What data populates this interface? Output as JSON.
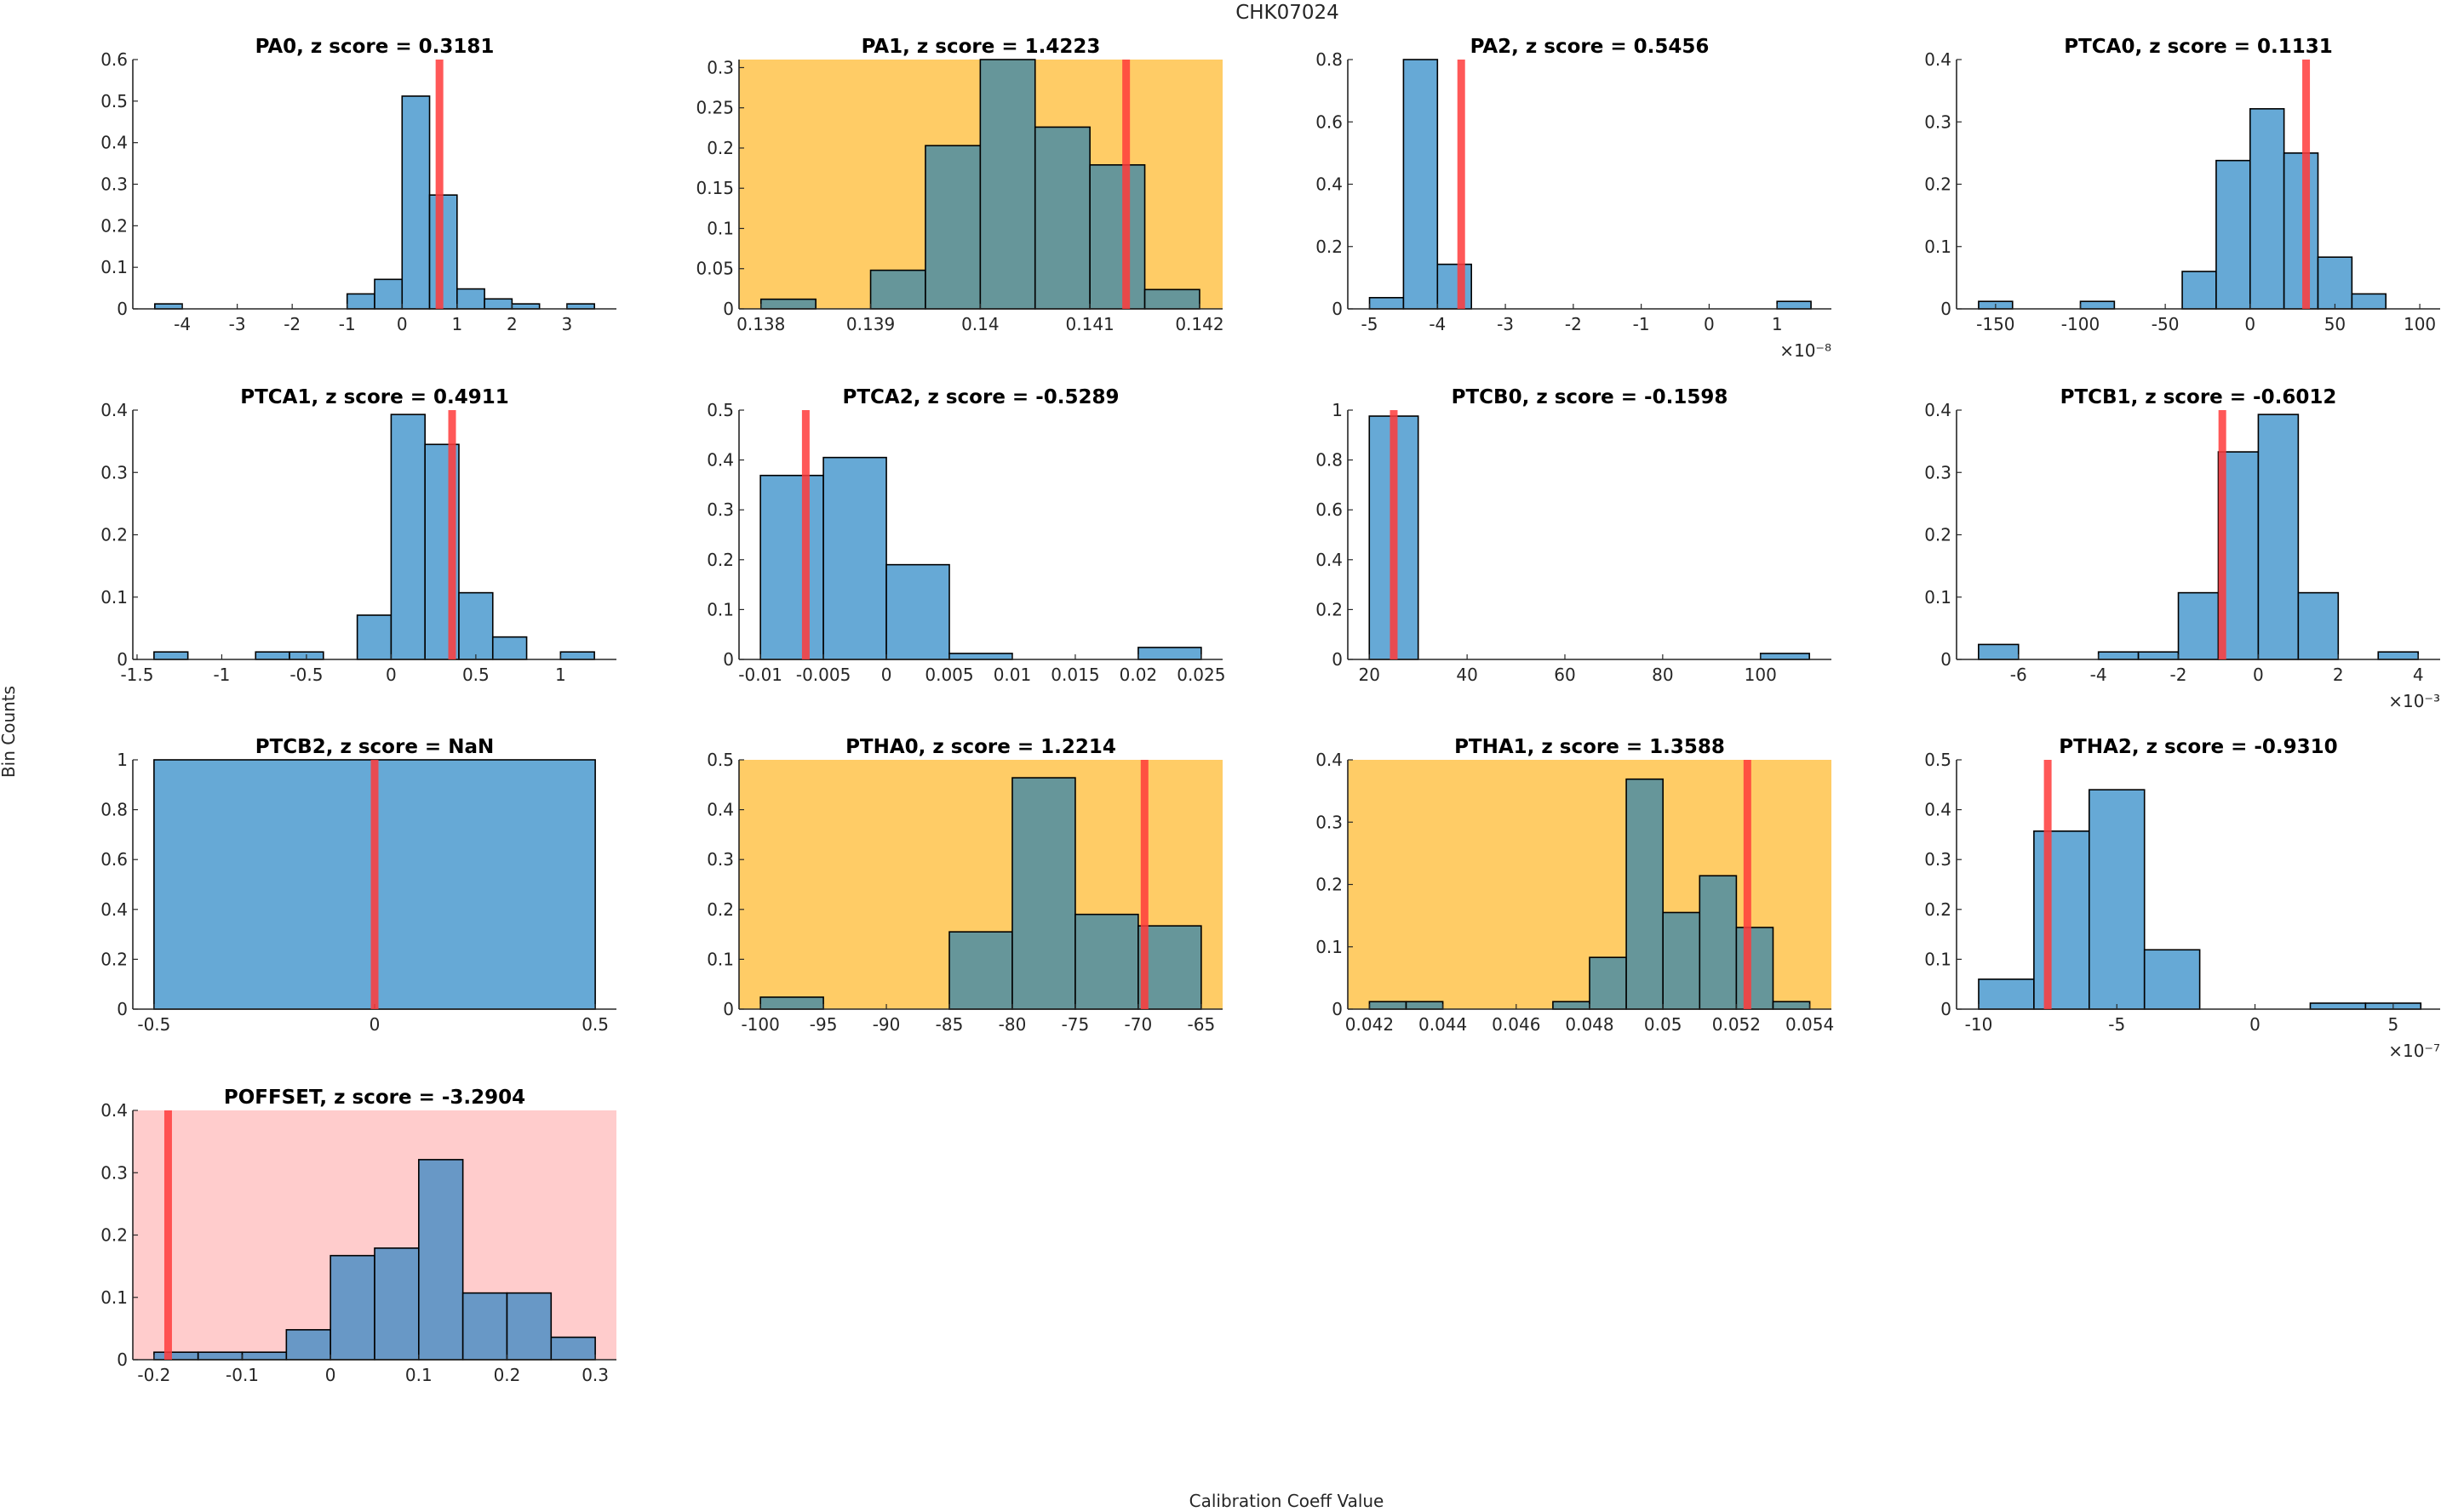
{
  "chart_data": {
    "type": "bar",
    "title": "CHK07024",
    "xlabel": "Calibration Coeff Value",
    "ylabel": "Bin Counts",
    "grid": false,
    "legend": "none",
    "colors": {
      "bar_normal": "#66a9d6",
      "bar_flagged": "#66969a",
      "bar_pink": "#6898c6",
      "bg_warning": "#ffcc66",
      "bg_alert": "#ffcccc",
      "ref_line": "#ff3b3b",
      "edge": "#000000",
      "axis": "#262626"
    },
    "panels": [
      {
        "name": "PA0",
        "title": "PA0, z score = 0.3181",
        "z_score": "0.3181",
        "status": "normal",
        "bin_start": -4.5,
        "bin_width": 0.5,
        "values": [
          0.012,
          0,
          0,
          0,
          0,
          0,
          0,
          0.036,
          0.071,
          0.512,
          0.274,
          0.048,
          0.024,
          0.012,
          0,
          0.012
        ],
        "ref_value": 0.68,
        "xlim": [
          -4.9,
          3.9
        ],
        "ylim": [
          0,
          0.6
        ],
        "xticks": [
          -4,
          -3,
          -2,
          -1,
          0,
          1,
          2,
          3
        ],
        "xticklabels": [
          "-4",
          "-3",
          "-2",
          "-1",
          "0",
          "1",
          "2",
          "3"
        ],
        "yticks": [
          0,
          0.1,
          0.2,
          0.3,
          0.4,
          0.5,
          0.6
        ],
        "yticklabels": [
          "0",
          "0.1",
          "0.2",
          "0.3",
          "0.4",
          "0.5",
          "0.6"
        ],
        "exponent": ""
      },
      {
        "name": "PA1",
        "title": "PA1, z score = 1.4223",
        "z_score": "1.4223",
        "status": "warning",
        "bin_start": 0.138,
        "bin_width": 0.0005,
        "values": [
          0.012,
          0,
          0.048,
          0.203,
          0.31,
          0.226,
          0.179,
          0.024
        ],
        "ref_value": 0.14133,
        "xlim": [
          0.1378,
          0.14221
        ],
        "ylim": [
          0,
          0.31
        ],
        "xticks": [
          0.138,
          0.139,
          0.14,
          0.141,
          0.142
        ],
        "xticklabels": [
          "0.138",
          "0.139",
          "0.14",
          "0.141",
          "0.142"
        ],
        "yticks": [
          0,
          0.05,
          0.1,
          0.15,
          0.2,
          0.25,
          0.3
        ],
        "yticklabels": [
          "0",
          "0.05",
          "0.1",
          "0.15",
          "0.2",
          "0.25",
          "0.3"
        ],
        "exponent": ""
      },
      {
        "name": "PA2",
        "title": "PA2, z score = 0.5456",
        "z_score": "0.5456",
        "status": "normal",
        "bin_start": -5,
        "bin_width": 0.5,
        "values": [
          0.036,
          0.8,
          0.143,
          0,
          0,
          0,
          0,
          0,
          0,
          0,
          0,
          0,
          0.024
        ],
        "ref_value": -3.65,
        "xlim": [
          -5.32,
          1.8
        ],
        "ylim": [
          0,
          0.8
        ],
        "xticks": [
          -5,
          -4,
          -3,
          -2,
          -1,
          0,
          1
        ],
        "xticklabels": [
          "-5",
          "-4",
          "-3",
          "-2",
          "-1",
          "0",
          "1"
        ],
        "yticks": [
          0,
          0.2,
          0.4,
          0.6,
          0.8
        ],
        "yticklabels": [
          "0",
          "0.2",
          "0.4",
          "0.6",
          "0.8"
        ],
        "exponent": "×10⁻⁸"
      },
      {
        "name": "PTCA0",
        "title": "PTCA0, z score = 0.1131",
        "z_score": "0.1131",
        "status": "normal",
        "bin_start": -160,
        "bin_width": 20,
        "values": [
          0.012,
          0,
          0,
          0.012,
          0,
          0,
          0.06,
          0.238,
          0.321,
          0.25,
          0.083,
          0.024
        ],
        "ref_value": 33,
        "xlim": [
          -173,
          112
        ],
        "ylim": [
          0,
          0.4
        ],
        "xticks": [
          -150,
          -100,
          -50,
          0,
          50,
          100
        ],
        "xticklabels": [
          "-150",
          "-100",
          "-50",
          "0",
          "50",
          "100"
        ],
        "yticks": [
          0,
          0.1,
          0.2,
          0.3,
          0.4
        ],
        "yticklabels": [
          "0",
          "0.1",
          "0.2",
          "0.3",
          "0.4"
        ],
        "exponent": ""
      },
      {
        "name": "PTCA1",
        "title": "PTCA1, z score = 0.4911",
        "z_score": "0.4911",
        "status": "normal",
        "bin_start": -1.4,
        "bin_width": 0.2,
        "values": [
          0.012,
          0,
          0,
          0.012,
          0.012,
          0,
          0.071,
          0.393,
          0.345,
          0.107,
          0.036,
          0,
          0.012
        ],
        "ref_value": 0.36,
        "xlim": [
          -1.525,
          1.33
        ],
        "ylim": [
          0,
          0.4
        ],
        "xticks": [
          -1.5,
          -1,
          -0.5,
          0,
          0.5,
          1
        ],
        "xticklabels": [
          "-1.5",
          "-1",
          "-0.5",
          "0",
          "0.5",
          "1"
        ],
        "yticks": [
          0,
          0.1,
          0.2,
          0.3,
          0.4
        ],
        "yticklabels": [
          "0",
          "0.1",
          "0.2",
          "0.3",
          "0.4"
        ],
        "exponent": ""
      },
      {
        "name": "PTCA2",
        "title": "PTCA2, z score = -0.5289",
        "z_score": "-0.5289",
        "status": "normal",
        "bin_start": -0.01,
        "bin_width": 0.005,
        "values": [
          0.369,
          0.405,
          0.19,
          0.012,
          0,
          0,
          0.024
        ],
        "ref_value": -0.0064,
        "xlim": [
          -0.0117,
          0.0267
        ],
        "ylim": [
          0,
          0.5
        ],
        "xticks": [
          -0.01,
          -0.005,
          0,
          0.005,
          0.01,
          0.015,
          0.02,
          0.025
        ],
        "xticklabels": [
          "-0.01",
          "-0.005",
          "0",
          "0.005",
          "0.01",
          "0.015",
          "0.02",
          "0.025"
        ],
        "yticks": [
          0,
          0.1,
          0.2,
          0.3,
          0.4,
          0.5
        ],
        "yticklabels": [
          "0",
          "0.1",
          "0.2",
          "0.3",
          "0.4",
          "0.5"
        ],
        "exponent": ""
      },
      {
        "name": "PTCB0",
        "title": "PTCB0, z score = -0.1598",
        "z_score": "-0.1598",
        "status": "normal",
        "bin_start": 20,
        "bin_width": 10,
        "values": [
          0.976,
          0,
          0,
          0,
          0,
          0,
          0,
          0,
          0.024
        ],
        "ref_value": 25,
        "xlim": [
          15.6,
          114.5
        ],
        "ylim": [
          0,
          1
        ],
        "xticks": [
          20,
          40,
          60,
          80,
          100
        ],
        "xticklabels": [
          "20",
          "40",
          "60",
          "80",
          "100"
        ],
        "yticks": [
          0,
          0.2,
          0.4,
          0.6,
          0.8,
          1
        ],
        "yticklabels": [
          "0",
          "0.2",
          "0.4",
          "0.6",
          "0.8",
          "1"
        ],
        "exponent": ""
      },
      {
        "name": "PTCB1",
        "title": "PTCB1, z score = -0.6012",
        "z_score": "-0.6012",
        "status": "normal",
        "bin_start": -7,
        "bin_width": 1,
        "values": [
          0.024,
          0,
          0,
          0.012,
          0.012,
          0.107,
          0.333,
          0.393,
          0.107,
          0,
          0.012
        ],
        "ref_value": -0.9,
        "xlim": [
          -7.55,
          4.55
        ],
        "ylim": [
          0,
          0.4
        ],
        "xticks": [
          -6,
          -4,
          -2,
          0,
          2,
          4
        ],
        "xticklabels": [
          "-6",
          "-4",
          "-2",
          "0",
          "2",
          "4"
        ],
        "yticks": [
          0,
          0.1,
          0.2,
          0.3,
          0.4
        ],
        "yticklabels": [
          "0",
          "0.1",
          "0.2",
          "0.3",
          "0.4"
        ],
        "exponent": "×10⁻³"
      },
      {
        "name": "PTCB2",
        "title": "PTCB2, z score = NaN",
        "z_score": "NaN",
        "status": "normal",
        "bin_start": -0.5,
        "bin_width": 1,
        "values": [
          1
        ],
        "ref_value": 0,
        "xlim": [
          -0.548,
          0.548
        ],
        "ylim": [
          0,
          1
        ],
        "xticks": [
          -0.5,
          0,
          0.5
        ],
        "xticklabels": [
          "-0.5",
          "0",
          "0.5"
        ],
        "yticks": [
          0,
          0.2,
          0.4,
          0.6,
          0.8,
          1
        ],
        "yticklabels": [
          "0",
          "0.2",
          "0.4",
          "0.6",
          "0.8",
          "1"
        ],
        "exponent": ""
      },
      {
        "name": "PTHA0",
        "title": "PTHA0, z score = 1.2214",
        "z_score": "1.2214",
        "status": "warning",
        "bin_start": -100,
        "bin_width": 5,
        "values": [
          0.024,
          0,
          0,
          0.155,
          0.464,
          0.19,
          0.167
        ],
        "ref_value": -69.5,
        "xlim": [
          -101.7,
          -63.3
        ],
        "ylim": [
          0,
          0.5
        ],
        "xticks": [
          -100,
          -95,
          -90,
          -85,
          -80,
          -75,
          -70,
          -65
        ],
        "xticklabels": [
          "-100",
          "-95",
          "-90",
          "-85",
          "-80",
          "-75",
          "-70",
          "-65"
        ],
        "yticks": [
          0,
          0.1,
          0.2,
          0.3,
          0.4,
          0.5
        ],
        "yticklabels": [
          "0",
          "0.1",
          "0.2",
          "0.3",
          "0.4",
          "0.5"
        ],
        "exponent": ""
      },
      {
        "name": "PTHA1",
        "title": "PTHA1, z score = 1.3588",
        "z_score": "1.3588",
        "status": "warning",
        "bin_start": 0.042,
        "bin_width": 0.001,
        "values": [
          0.012,
          0.012,
          0,
          0,
          0,
          0.012,
          0.083,
          0.369,
          0.155,
          0.214,
          0.131,
          0.012
        ],
        "ref_value": 0.0523,
        "xlim": [
          0.04141,
          0.05459
        ],
        "ylim": [
          0,
          0.4
        ],
        "xticks": [
          0.042,
          0.044,
          0.046,
          0.048,
          0.05,
          0.052,
          0.054
        ],
        "xticklabels": [
          "0.042",
          "0.044",
          "0.046",
          "0.048",
          "0.05",
          "0.052",
          "0.054"
        ],
        "yticks": [
          0,
          0.1,
          0.2,
          0.3,
          0.4
        ],
        "yticklabels": [
          "0",
          "0.1",
          "0.2",
          "0.3",
          "0.4"
        ],
        "exponent": ""
      },
      {
        "name": "PTHA2",
        "title": "PTHA2, z score = -0.9310",
        "z_score": "-0.9310",
        "status": "normal",
        "bin_start": -10,
        "bin_width": 2,
        "values": [
          0.06,
          0.357,
          0.44,
          0.119,
          0,
          0,
          0.012,
          0.012
        ],
        "ref_value": -7.5,
        "xlim": [
          -10.8,
          6.7
        ],
        "ylim": [
          0,
          0.5
        ],
        "xticks": [
          -10,
          -5,
          0,
          5
        ],
        "xticklabels": [
          "-10",
          "-5",
          "0",
          "5"
        ],
        "yticks": [
          0,
          0.1,
          0.2,
          0.3,
          0.4,
          0.5
        ],
        "yticklabels": [
          "0",
          "0.1",
          "0.2",
          "0.3",
          "0.4",
          "0.5"
        ],
        "exponent": "×10⁻⁷"
      },
      {
        "name": "POFFSET",
        "title": "POFFSET, z score = -3.2904",
        "z_score": "-3.2904",
        "status": "alert",
        "bin_start": -0.2,
        "bin_width": 0.05,
        "values": [
          0.012,
          0.012,
          0.012,
          0.048,
          0.167,
          0.179,
          0.321,
          0.107,
          0.107,
          0.036
        ],
        "ref_value": -0.184,
        "xlim": [
          -0.224,
          0.324
        ],
        "ylim": [
          0,
          0.4
        ],
        "xticks": [
          -0.2,
          -0.1,
          0,
          0.1,
          0.2,
          0.3
        ],
        "xticklabels": [
          "-0.2",
          "-0.1",
          "0",
          "0.1",
          "0.2",
          "0.3"
        ],
        "yticks": [
          0,
          0.1,
          0.2,
          0.3,
          0.4
        ],
        "yticklabels": [
          "0",
          "0.1",
          "0.2",
          "0.3",
          "0.4"
        ],
        "exponent": ""
      }
    ]
  }
}
